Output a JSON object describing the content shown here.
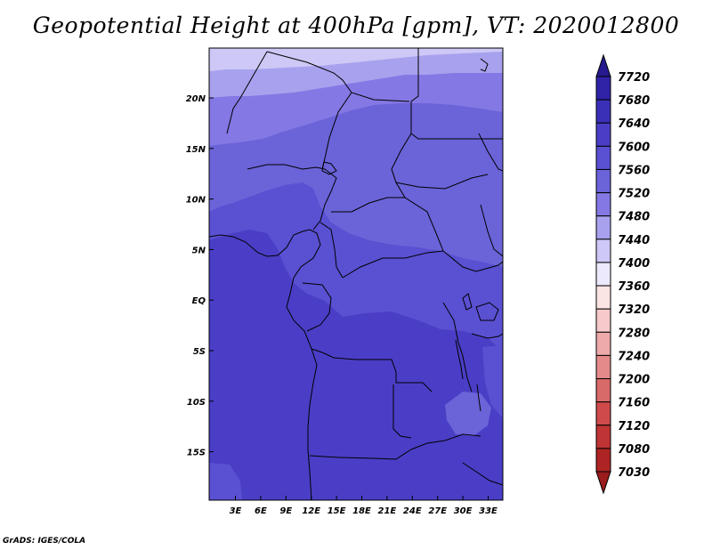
{
  "title": "Geopotential Height at 400hPa [gpm], VT: 2020012800",
  "credit": "GrADS: IGES/COLA",
  "map": {
    "lat_ticks": [
      "20N",
      "15N",
      "10N",
      "5N",
      "EQ",
      "5S",
      "10S",
      "15S"
    ],
    "lon_ticks": [
      "3E",
      "6E",
      "9E",
      "12E",
      "15E",
      "18E",
      "21E",
      "24E",
      "27E",
      "30E",
      "33E"
    ],
    "colors": {
      "band_7600_7640": "#4a3ec6",
      "band_7560_7600": "#5a50d2",
      "band_7520_7560": "#6b63d8",
      "band_7480_7520": "#8478e4",
      "band_7440_7480": "#a8a1ee",
      "coastline": "#000000"
    }
  },
  "colorbar": {
    "labels": [
      "7720",
      "7680",
      "7640",
      "7600",
      "7560",
      "7520",
      "7480",
      "7440",
      "7400",
      "7360",
      "7320",
      "7280",
      "7240",
      "7200",
      "7160",
      "7120",
      "7080",
      "7030"
    ],
    "colors": [
      "#251a8f",
      "#2f23a8",
      "#3a30b8",
      "#4a3ec6",
      "#5a50d2",
      "#6b63d8",
      "#8478e4",
      "#a8a1ee",
      "#cdc8f6",
      "#ece9fc",
      "#fbe4e4",
      "#f6caca",
      "#eeaaaa",
      "#e48a8a",
      "#d96a6a",
      "#cf4b4b",
      "#bf3535",
      "#ae2424",
      "#9b1c1c"
    ]
  }
}
